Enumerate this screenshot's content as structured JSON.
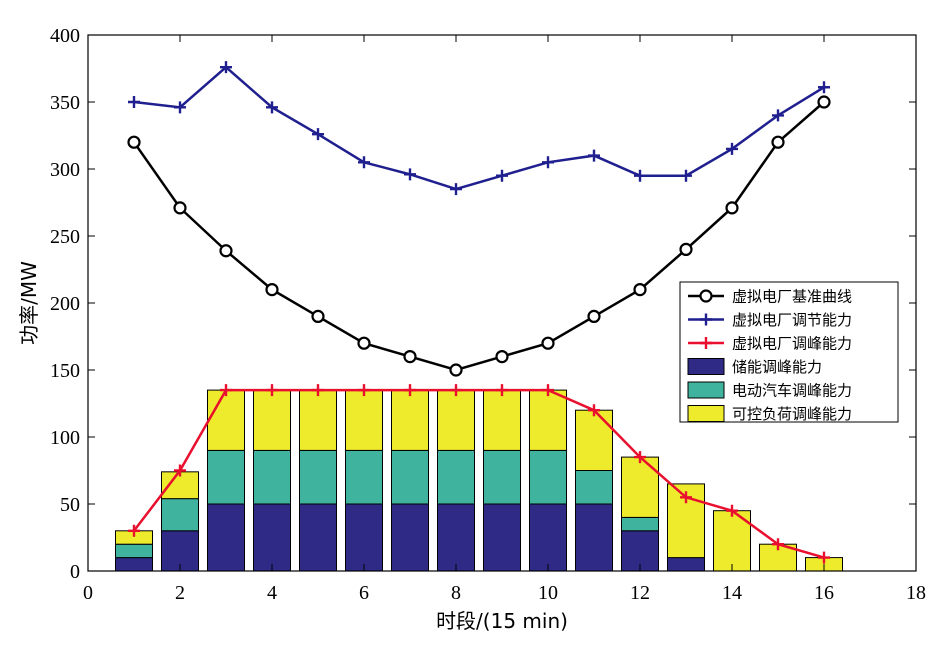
{
  "chart_data": {
    "type": "bar",
    "xlabel": "时段/(15 min)",
    "ylabel": "功率/MW",
    "xlim": [
      0,
      18
    ],
    "ylim": [
      0,
      400
    ],
    "xticks": [
      0,
      2,
      4,
      6,
      8,
      10,
      12,
      14,
      16,
      18
    ],
    "yticks": [
      0,
      50,
      100,
      150,
      200,
      250,
      300,
      350,
      400
    ],
    "x": [
      1,
      2,
      3,
      4,
      5,
      6,
      7,
      8,
      9,
      10,
      11,
      12,
      13,
      14,
      15,
      16
    ],
    "lines": [
      {
        "name": "虚拟电厂基准曲线",
        "color": "#000000",
        "marker": "circle",
        "values": [
          320,
          271,
          239,
          210,
          190,
          170,
          160,
          150,
          160,
          170,
          190,
          210,
          240,
          271,
          320,
          350
        ]
      },
      {
        "name": "虚拟电厂调节能力",
        "color": "#1f1f8f",
        "marker": "plus",
        "values": [
          350,
          346,
          376,
          346,
          326,
          305,
          296,
          285,
          295,
          305,
          310,
          295,
          295,
          315,
          340,
          361
        ]
      },
      {
        "name": "虚拟电厂调峰能力",
        "color": "#e8102e",
        "marker": "plus",
        "values": [
          30,
          75,
          135,
          135,
          135,
          135,
          135,
          135,
          135,
          135,
          120,
          85,
          55,
          45,
          20,
          10
        ]
      }
    ],
    "stacked_bars": [
      {
        "name": "储能调峰能力",
        "color": "#2e2a86",
        "values": [
          10,
          30,
          50,
          50,
          50,
          50,
          50,
          50,
          50,
          50,
          50,
          30,
          10,
          0,
          0,
          0
        ]
      },
      {
        "name": "电动汽车调峰能力",
        "color": "#3fb39d",
        "values": [
          10,
          24,
          40,
          40,
          40,
          40,
          40,
          40,
          40,
          40,
          25,
          10,
          0,
          0,
          0,
          0
        ]
      },
      {
        "name": "可控负荷调峰能力",
        "color": "#eeea2c",
        "values": [
          10,
          20,
          45,
          45,
          45,
          45,
          45,
          45,
          45,
          45,
          45,
          45,
          55,
          45,
          20,
          10
        ]
      }
    ],
    "legend_position": "right",
    "grid": false
  }
}
